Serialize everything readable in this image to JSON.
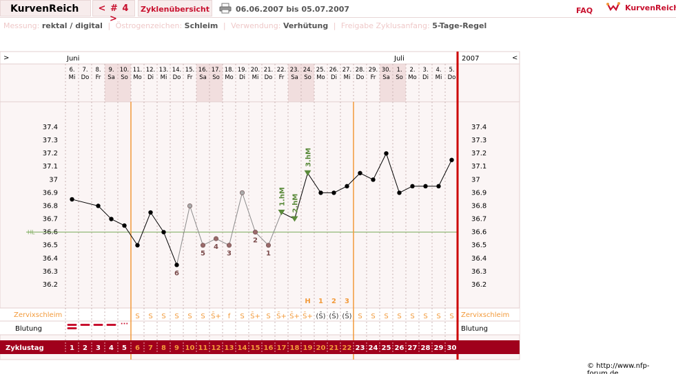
{
  "topbar": {
    "app_title": "KurvenReich",
    "cycle_nav": "< # 4 >",
    "overview_button": "Zyklenübersicht",
    "date_range": "06.06.2007 bis 05.07.2007",
    "faq": "FAQ",
    "brand": "KurvenReich"
  },
  "info": {
    "messung_label": "Messung:",
    "messung_value": "rektal / digital",
    "oestrogen_label": "Östrogenzeichen:",
    "oestrogen_value": "Schleim",
    "verwendung_label": "Verwendung:",
    "verwendung_value": "Verhütung",
    "freigabe_label": "Freigabe Zyklusanfang:",
    "freigabe_value": "5-Tage-Regel"
  },
  "chart_header": {
    "left_arrow": ">",
    "right_arrow": "<",
    "year": "2007",
    "months": [
      {
        "label": "Juni",
        "day_index": 0
      },
      {
        "label": "Juli",
        "day_index": 25
      }
    ]
  },
  "days": [
    {
      "date": "6.",
      "weekday": "Mi",
      "weekend": false
    },
    {
      "date": "7.",
      "weekday": "Do",
      "weekend": false
    },
    {
      "date": "8.",
      "weekday": "Fr",
      "weekend": false
    },
    {
      "date": "9.",
      "weekday": "Sa",
      "weekend": true
    },
    {
      "date": "10.",
      "weekday": "So",
      "weekend": true
    },
    {
      "date": "11.",
      "weekday": "Mo",
      "weekend": false
    },
    {
      "date": "12.",
      "weekday": "Di",
      "weekend": false
    },
    {
      "date": "13.",
      "weekday": "Mi",
      "weekend": false
    },
    {
      "date": "14.",
      "weekday": "Do",
      "weekend": false
    },
    {
      "date": "15.",
      "weekday": "Fr",
      "weekend": false
    },
    {
      "date": "16.",
      "weekday": "Sa",
      "weekend": true
    },
    {
      "date": "17.",
      "weekday": "So",
      "weekend": true
    },
    {
      "date": "18.",
      "weekday": "Mo",
      "weekend": false
    },
    {
      "date": "19.",
      "weekday": "Di",
      "weekend": false
    },
    {
      "date": "20.",
      "weekday": "Mi",
      "weekend": false
    },
    {
      "date": "21.",
      "weekday": "Do",
      "weekend": false
    },
    {
      "date": "22.",
      "weekday": "Fr",
      "weekend": false
    },
    {
      "date": "23.",
      "weekday": "Sa",
      "weekend": true
    },
    {
      "date": "24.",
      "weekday": "So",
      "weekend": true
    },
    {
      "date": "25.",
      "weekday": "Mo",
      "weekend": false
    },
    {
      "date": "26.",
      "weekday": "Di",
      "weekend": false
    },
    {
      "date": "27.",
      "weekday": "Mi",
      "weekend": false
    },
    {
      "date": "28.",
      "weekday": "Do",
      "weekend": false
    },
    {
      "date": "29.",
      "weekday": "Fr",
      "weekend": false
    },
    {
      "date": "30.",
      "weekday": "Sa",
      "weekend": true
    },
    {
      "date": "1.",
      "weekday": "So",
      "weekend": true
    },
    {
      "date": "2.",
      "weekday": "Mo",
      "weekend": false
    },
    {
      "date": "3.",
      "weekday": "Di",
      "weekend": false
    },
    {
      "date": "4.",
      "weekday": "Mi",
      "weekend": false
    },
    {
      "date": "5.",
      "weekday": "Do",
      "weekend": false
    }
  ],
  "chart_data": {
    "type": "line",
    "ylim": [
      36.1,
      37.5
    ],
    "yticks": [
      "37.4",
      "37.3",
      "37.2",
      "37.1",
      "37",
      "36.9",
      "36.8",
      "36.7",
      "36.6",
      "36.5",
      "36.4",
      "36.3",
      "36.2"
    ],
    "hl_label": "HL",
    "hl_value": 36.6,
    "temperatures": [
      36.85,
      null,
      36.8,
      36.7,
      36.65,
      36.5,
      36.75,
      36.6,
      36.35,
      36.8,
      36.5,
      36.55,
      36.5,
      36.9,
      36.6,
      36.5,
      36.75,
      36.7,
      37.05,
      36.9,
      36.9,
      36.95,
      37.05,
      37.0,
      37.2,
      36.9,
      36.95,
      36.95,
      36.95,
      37.15
    ],
    "excluded_days": [
      9,
      10,
      11,
      12,
      13,
      14,
      15
    ],
    "excluded_labels": [
      {
        "day_index": 8,
        "label": "6"
      },
      {
        "day_index": 10,
        "label": "5"
      },
      {
        "day_index": 11,
        "label": "4"
      },
      {
        "day_index": 12,
        "label": "3"
      },
      {
        "day_index": 14,
        "label": "2"
      },
      {
        "day_index": 15,
        "label": "1"
      }
    ],
    "higher_markers": [
      {
        "day_index": 16,
        "label": "1.hM"
      },
      {
        "day_index": 17,
        "label": "2.hM"
      },
      {
        "day_index": 18,
        "label": "3.hM"
      }
    ],
    "phase_lines": [
      5,
      22
    ],
    "colors": {
      "temp_line": "#000000",
      "excluded": "#9a6a6a",
      "higher_marker": "#5a8a3a",
      "hl_line": "#7aab5a",
      "phase": "#f29a3a",
      "cycle_end": "#cc0000",
      "zyklustag_bg": "#a0001c",
      "weekend_bg": "#f1dede",
      "grid_bg": "#fbf5f5"
    }
  },
  "cervix": {
    "label": "Zervixschleim",
    "marks": [
      "",
      "",
      "",
      "",
      "",
      "S",
      "S",
      "S",
      "S",
      "S",
      "S",
      "S̄+",
      "f",
      "S",
      "S̄+",
      "S",
      "S̄+",
      "S̄+",
      "S̄+",
      "(S̄)",
      "(S̄)",
      "(S̄)",
      "S",
      "S",
      "S",
      "S",
      "S",
      "S",
      "S",
      "S"
    ],
    "peak_markers": [
      {
        "day_index": 18,
        "label": "H"
      },
      {
        "day_index": 19,
        "label": "1"
      },
      {
        "day_index": 20,
        "label": "2"
      },
      {
        "day_index": 21,
        "label": "3"
      }
    ]
  },
  "bleeding": {
    "label": "Blutung",
    "levels": [
      "heavy",
      "medium",
      "medium",
      "medium",
      "light"
    ]
  },
  "zyklustag": {
    "label": "Zyklustag",
    "numbers": [
      "1",
      "2",
      "3",
      "4",
      "5",
      "6",
      "7",
      "8",
      "9",
      "10",
      "11",
      "12",
      "13",
      "14",
      "15",
      "16",
      "17",
      "18",
      "19",
      "20",
      "21",
      "22",
      "23",
      "24",
      "25",
      "26",
      "27",
      "28",
      "29",
      "30"
    ],
    "highlight_range": [
      5,
      21
    ]
  },
  "copyright": "© http://www.nfp-forum.de"
}
